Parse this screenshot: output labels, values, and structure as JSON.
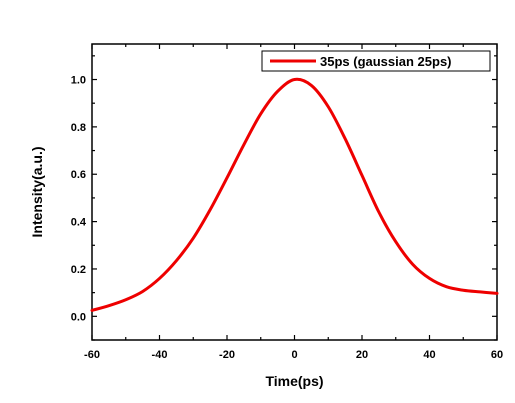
{
  "chart_data": {
    "type": "line",
    "title": "",
    "xlabel": "Time(ps)",
    "ylabel": "Intensity(a.u.)",
    "xlim": [
      -60,
      60
    ],
    "ylim": [
      -0.1,
      1.15
    ],
    "xticks": [
      -60,
      -40,
      -20,
      0,
      20,
      40,
      60
    ],
    "xtick_labels": [
      "-60",
      "-40",
      "-20",
      "0",
      "20",
      "40",
      "60"
    ],
    "yticks": [
      0.0,
      0.2,
      0.4,
      0.6,
      0.8,
      1.0
    ],
    "ytick_labels": [
      "0.0",
      "0.2",
      "0.4",
      "0.6",
      "0.8",
      "1.0"
    ],
    "grid": false,
    "legend_position": "top-right",
    "series": [
      {
        "name": "35ps (gaussian 25ps)",
        "color": "#ee0000",
        "x": [
          -60,
          -55,
          -50,
          -45,
          -40,
          -35,
          -30,
          -25,
          -20,
          -15,
          -10,
          -5,
          0,
          5,
          10,
          15,
          20,
          25,
          30,
          35,
          40,
          45,
          50,
          55,
          60
        ],
        "y": [
          0.025,
          0.045,
          0.07,
          0.105,
          0.16,
          0.235,
          0.33,
          0.45,
          0.585,
          0.725,
          0.855,
          0.95,
          1.0,
          0.975,
          0.885,
          0.75,
          0.595,
          0.44,
          0.315,
          0.22,
          0.16,
          0.125,
          0.11,
          0.103,
          0.097
        ]
      }
    ]
  }
}
